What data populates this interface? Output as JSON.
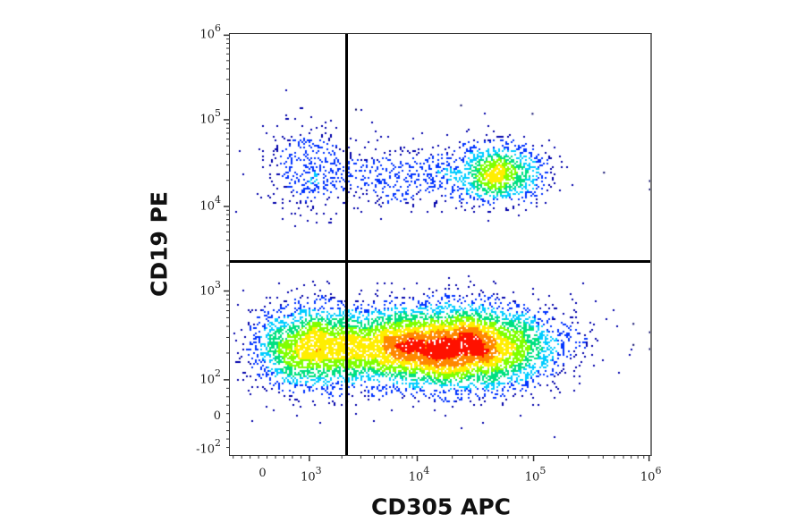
{
  "chart_data": {
    "type": "scatter",
    "subtype": "flow-cytometry-density-dot-plot",
    "title": "",
    "xlabel": "CD305 APC",
    "ylabel": "CD19 PE",
    "x_scale": "biexponential",
    "y_scale": "biexponential",
    "x_ticks": [
      {
        "label": "0",
        "exp": null,
        "pos": 0.075
      },
      {
        "label": "10",
        "exp": "3",
        "pos": 0.19
      },
      {
        "label": "10",
        "exp": "4",
        "pos": 0.445
      },
      {
        "label": "10",
        "exp": "5",
        "pos": 0.72
      },
      {
        "label": "10",
        "exp": "6",
        "pos": 0.993
      }
    ],
    "y_ticks": [
      {
        "label": "10",
        "exp": "6",
        "pos": 0.005
      },
      {
        "label": "10",
        "exp": "5",
        "pos": 0.205
      },
      {
        "label": "10",
        "exp": "4",
        "pos": 0.41
      },
      {
        "label": "10",
        "exp": "3",
        "pos": 0.61
      },
      {
        "label": "10",
        "exp": "2",
        "pos": 0.82
      },
      {
        "label": "0",
        "exp": null,
        "pos": 0.915
      },
      {
        "label": "-10",
        "exp": "2",
        "pos": 0.985
      }
    ],
    "gates": {
      "quadrant_x_value": "~2.5x10^3",
      "quadrant_y_value": "~2x10^3",
      "vertical_line_pos": 0.277,
      "horizontal_line_pos": 0.54
    },
    "populations": [
      {
        "name": "CD19+ CD305- (upper left)",
        "cx": 0.19,
        "cy": 0.32,
        "sx": 0.055,
        "sy": 0.055,
        "n": 350,
        "peak_density": 0.25
      },
      {
        "name": "CD19+ CD305+ (upper right)",
        "cx": 0.64,
        "cy": 0.33,
        "sx": 0.055,
        "sy": 0.035,
        "n": 1100,
        "peak_density": 0.6
      },
      {
        "name": "CD19+ trail",
        "cx": 0.42,
        "cy": 0.34,
        "sx": 0.12,
        "sy": 0.04,
        "n": 500,
        "peak_density": 0.2
      },
      {
        "name": "CD19- CD305- (lower left)",
        "cx": 0.19,
        "cy": 0.745,
        "sx": 0.07,
        "sy": 0.05,
        "n": 2200,
        "peak_density": 0.45
      },
      {
        "name": "CD19- CD305+ (lower right)",
        "cx": 0.56,
        "cy": 0.745,
        "sx": 0.11,
        "sy": 0.05,
        "n": 5000,
        "peak_density": 1.0
      },
      {
        "name": "CD19- CD305 mid",
        "cx": 0.38,
        "cy": 0.745,
        "sx": 0.09,
        "sy": 0.045,
        "n": 2000,
        "peak_density": 0.5
      }
    ],
    "colormap": [
      "#0000aa",
      "#0033ff",
      "#00ccff",
      "#00e080",
      "#80ff00",
      "#ffee00",
      "#ff8800",
      "#ff1100"
    ],
    "legend": null,
    "grid": false
  }
}
